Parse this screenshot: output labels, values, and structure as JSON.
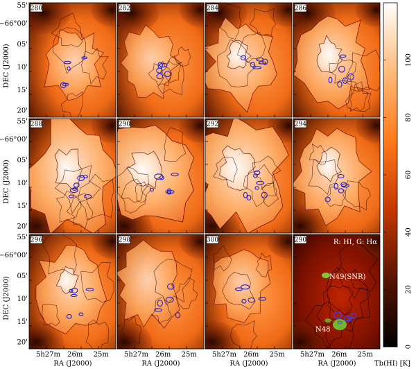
{
  "figure": {
    "grid": {
      "rows": 3,
      "cols": 4
    },
    "panels": [
      {
        "label": "280",
        "type": "HI"
      },
      {
        "label": "282",
        "type": "HI"
      },
      {
        "label": "284",
        "type": "HI"
      },
      {
        "label": "286",
        "type": "HI"
      },
      {
        "label": "288",
        "type": "HI"
      },
      {
        "label": "290",
        "type": "HI"
      },
      {
        "label": "292",
        "type": "HI"
      },
      {
        "label": "294",
        "type": "HI"
      },
      {
        "label": "296",
        "type": "HI"
      },
      {
        "label": "298",
        "type": "HI"
      },
      {
        "label": "300",
        "type": "HI"
      },
      {
        "label": "290",
        "type": "composite",
        "legend": "R: HI, G: Hα",
        "annotations": [
          "N49(SNR)",
          "N48"
        ]
      }
    ],
    "dec_ticks": [
      "55'",
      "−66°00'",
      "05'",
      "10'",
      "15'",
      "20'"
    ],
    "ra_ticks": [
      "5h27m",
      "26m",
      "25m"
    ],
    "ylabel": "DEC (J2000)",
    "xlabel": "RA (J2000)",
    "colorbar": {
      "label": "Tb(HI) [K]",
      "ticks": [
        "0",
        "20",
        "40",
        "60",
        "80",
        "100"
      ],
      "min": 0,
      "max": 120
    }
  }
}
